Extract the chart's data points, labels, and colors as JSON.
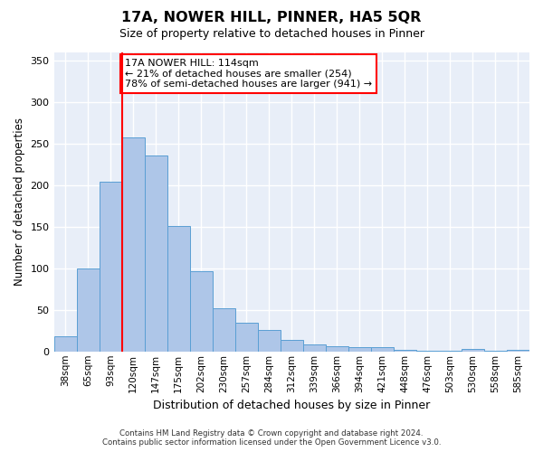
{
  "title": "17A, NOWER HILL, PINNER, HA5 5QR",
  "subtitle": "Size of property relative to detached houses in Pinner",
  "xlabel": "Distribution of detached houses by size in Pinner",
  "ylabel": "Number of detached properties",
  "bar_labels": [
    "38sqm",
    "65sqm",
    "93sqm",
    "120sqm",
    "147sqm",
    "175sqm",
    "202sqm",
    "230sqm",
    "257sqm",
    "284sqm",
    "312sqm",
    "339sqm",
    "366sqm",
    "394sqm",
    "421sqm",
    "448sqm",
    "476sqm",
    "503sqm",
    "530sqm",
    "558sqm",
    "585sqm"
  ],
  "bar_values": [
    18,
    100,
    204,
    257,
    236,
    151,
    97,
    52,
    35,
    26,
    14,
    8,
    6,
    5,
    5,
    2,
    1,
    1,
    3,
    1,
    2
  ],
  "bar_color": "#aec6e8",
  "bar_edge_color": "#5a9fd4",
  "vline_color": "red",
  "vline_x": 2.5,
  "annotation_text": "17A NOWER HILL: 114sqm\n← 21% of detached houses are smaller (254)\n78% of semi-detached houses are larger (941) →",
  "annotation_box_color": "white",
  "annotation_box_edge": "red",
  "ylim": [
    0,
    360
  ],
  "yticks": [
    0,
    50,
    100,
    150,
    200,
    250,
    300,
    350
  ],
  "bg_color": "#e8eef8",
  "grid_color": "#ffffff",
  "footer_line1": "Contains HM Land Registry data © Crown copyright and database right 2024.",
  "footer_line2": "Contains public sector information licensed under the Open Government Licence v3.0."
}
